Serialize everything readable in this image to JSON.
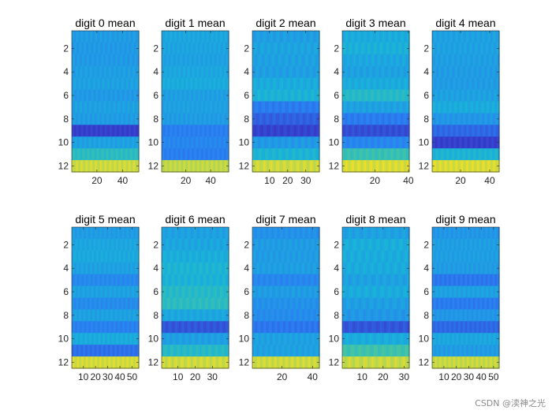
{
  "figure": {
    "watermark": "CSDN @渎神之光"
  },
  "colormap": {
    "low": "#3b1fb8",
    "mid_low": "#2a7ff2",
    "mid": "#18b3d8",
    "mid_high": "#4ac69e",
    "high": "#f8e020"
  },
  "chart_data": [
    {
      "type": "heatmap",
      "title": "digit 0 mean",
      "x_range": [
        1,
        52
      ],
      "xticks": [
        20,
        40
      ],
      "yticks": [
        2,
        4,
        6,
        8,
        10,
        12
      ],
      "row_values": [
        0.46,
        0.45,
        0.45,
        0.47,
        0.48,
        0.45,
        0.48,
        0.46,
        0.12,
        0.48,
        0.62,
        0.93
      ]
    },
    {
      "type": "heatmap",
      "title": "digit 1 mean",
      "x_range": [
        1,
        54
      ],
      "xticks": [
        20,
        40
      ],
      "yticks": [
        2,
        4,
        6,
        8,
        10,
        12
      ],
      "row_values": [
        0.5,
        0.49,
        0.48,
        0.5,
        0.52,
        0.47,
        0.48,
        0.46,
        0.35,
        0.38,
        0.35,
        0.91
      ]
    },
    {
      "type": "heatmap",
      "title": "digit 2 mean",
      "x_range": [
        1,
        37
      ],
      "xticks": [
        10,
        20,
        30
      ],
      "yticks": [
        2,
        4,
        6,
        8,
        10,
        12
      ],
      "row_values": [
        0.47,
        0.49,
        0.48,
        0.47,
        0.52,
        0.55,
        0.34,
        0.24,
        0.13,
        0.45,
        0.56,
        0.93
      ]
    },
    {
      "type": "heatmap",
      "title": "digit 3 mean",
      "x_range": [
        1,
        40
      ],
      "xticks": [
        20,
        40
      ],
      "yticks": [
        2,
        4,
        6,
        8,
        10,
        12
      ],
      "row_values": [
        0.52,
        0.54,
        0.5,
        0.48,
        0.52,
        0.6,
        0.48,
        0.34,
        0.17,
        0.38,
        0.66,
        0.95
      ]
    },
    {
      "type": "heatmap",
      "title": "digit 4 mean",
      "x_range": [
        1,
        46
      ],
      "xticks": [
        20,
        40
      ],
      "yticks": [
        2,
        4,
        6,
        8,
        10,
        12
      ],
      "row_values": [
        0.48,
        0.48,
        0.47,
        0.46,
        0.46,
        0.48,
        0.52,
        0.44,
        0.27,
        0.12,
        0.56,
        0.95
      ]
    },
    {
      "type": "heatmap",
      "title": "digit 5 mean",
      "x_range": [
        1,
        55
      ],
      "xticks": [
        10,
        20,
        30,
        40,
        50
      ],
      "yticks": [
        2,
        4,
        6,
        8,
        10,
        12
      ],
      "row_values": [
        0.46,
        0.5,
        0.51,
        0.48,
        0.39,
        0.48,
        0.4,
        0.48,
        0.36,
        0.52,
        0.3,
        0.94
      ]
    },
    {
      "type": "heatmap",
      "title": "digit 6 mean",
      "x_range": [
        1,
        39
      ],
      "xticks": [
        10,
        20,
        30
      ],
      "yticks": [
        2,
        4,
        6,
        8,
        10,
        12
      ],
      "row_values": [
        0.48,
        0.5,
        0.53,
        0.56,
        0.55,
        0.6,
        0.62,
        0.5,
        0.2,
        0.47,
        0.6,
        0.93
      ]
    },
    {
      "type": "heatmap",
      "title": "digit 7 mean",
      "x_range": [
        1,
        44
      ],
      "xticks": [
        20,
        40
      ],
      "yticks": [
        2,
        4,
        6,
        8,
        10,
        12
      ],
      "row_values": [
        0.42,
        0.46,
        0.46,
        0.47,
        0.38,
        0.46,
        0.42,
        0.4,
        0.32,
        0.48,
        0.48,
        0.93
      ]
    },
    {
      "type": "heatmap",
      "title": "digit 8 mean",
      "x_range": [
        1,
        32
      ],
      "xticks": [
        10,
        20,
        30
      ],
      "yticks": [
        2,
        4,
        6,
        8,
        10,
        12
      ],
      "row_values": [
        0.48,
        0.53,
        0.52,
        0.52,
        0.48,
        0.52,
        0.47,
        0.44,
        0.2,
        0.52,
        0.68,
        0.92
      ]
    },
    {
      "type": "heatmap",
      "title": "digit 9 mean",
      "x_range": [
        1,
        54
      ],
      "xticks": [
        10,
        20,
        30,
        40,
        50
      ],
      "yticks": [
        2,
        4,
        6,
        8,
        10,
        12
      ],
      "row_values": [
        0.44,
        0.47,
        0.47,
        0.46,
        0.32,
        0.48,
        0.34,
        0.44,
        0.27,
        0.5,
        0.46,
        0.92
      ]
    }
  ]
}
